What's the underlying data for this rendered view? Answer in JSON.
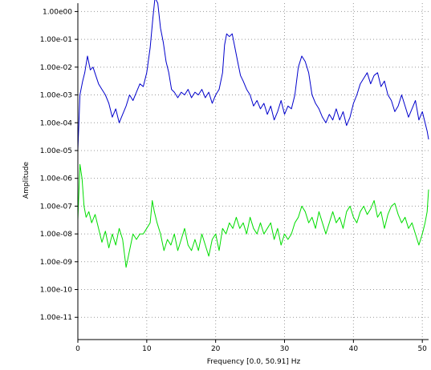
{
  "chart_data": {
    "type": "line",
    "title": "",
    "xlabel": "Frequency [0.0, 50.91] Hz",
    "ylabel": "Amplitude",
    "x_scale": "linear",
    "y_scale": "log",
    "xlim": [
      0,
      50.91
    ],
    "ylim_log10": [
      -11.8,
      0.3
    ],
    "grid": true,
    "legend": "none",
    "x_ticks": [
      0,
      10,
      20,
      30,
      40,
      50
    ],
    "x_tick_labels": [
      "0",
      "10",
      "20",
      "30",
      "40",
      "50"
    ],
    "y_ticks_log10": [
      0,
      -1,
      -2,
      -3,
      -4,
      -5,
      -6,
      -7,
      -8,
      -9,
      -10,
      -11
    ],
    "y_tick_labels": [
      "1.00e00",
      "1.00e-01",
      "1.00e-02",
      "1.00e-03",
      "1.00e-04",
      "1.00e-05",
      "1.00e-06",
      "1.00e-07",
      "1.00e-08",
      "1.00e-09",
      "1.00e-10",
      "1.00e-11"
    ],
    "series": [
      {
        "color": "#0000cc",
        "x": [
          0,
          0.3,
          0.7,
          1.0,
          1.4,
          1.8,
          2.2,
          2.6,
          3.0,
          3.5,
          4.0,
          4.5,
          5.0,
          5.5,
          6.0,
          6.5,
          7.0,
          7.5,
          8.0,
          8.5,
          9.0,
          9.5,
          10.0,
          10.5,
          10.9,
          11.2,
          11.6,
          12.0,
          12.4,
          12.8,
          13.2,
          13.6,
          14.0,
          14.5,
          15.0,
          15.5,
          16.0,
          16.5,
          17.0,
          17.5,
          18.0,
          18.5,
          19.0,
          19.5,
          20.0,
          20.5,
          21.0,
          21.3,
          21.6,
          22.0,
          22.4,
          22.8,
          23.2,
          23.6,
          24.0,
          24.5,
          25.0,
          25.5,
          26.0,
          26.5,
          27.0,
          27.5,
          28.0,
          28.5,
          29.0,
          29.5,
          30.0,
          30.5,
          31.0,
          31.5,
          32.0,
          32.5,
          33.0,
          33.5,
          34.0,
          34.5,
          35.0,
          35.5,
          36.0,
          36.5,
          37.0,
          37.5,
          38.0,
          38.5,
          39.0,
          39.5,
          40.0,
          40.5,
          41.0,
          41.5,
          42.0,
          42.5,
          43.0,
          43.5,
          44.0,
          44.5,
          45.0,
          45.5,
          46.0,
          46.5,
          47.0,
          47.5,
          48.0,
          48.5,
          49.0,
          49.5,
          50.0,
          50.4,
          50.7,
          50.91
        ],
        "log10_y": [
          -5.0,
          -3.0,
          -2.5,
          -2.2,
          -1.6,
          -2.1,
          -2.0,
          -2.3,
          -2.6,
          -2.8,
          -3.0,
          -3.3,
          -3.8,
          -3.5,
          -4.0,
          -3.7,
          -3.4,
          -3.0,
          -3.2,
          -2.9,
          -2.6,
          -2.7,
          -2.2,
          -1.3,
          -0.2,
          0.5,
          0.3,
          -0.6,
          -1.1,
          -1.8,
          -2.2,
          -2.8,
          -2.9,
          -3.1,
          -2.9,
          -3.0,
          -2.8,
          -3.1,
          -2.9,
          -3.0,
          -2.8,
          -3.1,
          -2.9,
          -3.3,
          -3.0,
          -2.8,
          -2.2,
          -1.2,
          -0.8,
          -0.9,
          -0.8,
          -1.3,
          -1.8,
          -2.3,
          -2.5,
          -2.8,
          -3.0,
          -3.4,
          -3.2,
          -3.5,
          -3.3,
          -3.7,
          -3.4,
          -3.9,
          -3.6,
          -3.2,
          -3.7,
          -3.4,
          -3.5,
          -3.0,
          -2.0,
          -1.6,
          -1.8,
          -2.2,
          -3.0,
          -3.3,
          -3.5,
          -3.8,
          -4.0,
          -3.7,
          -3.9,
          -3.5,
          -3.9,
          -3.6,
          -4.1,
          -3.8,
          -3.3,
          -3.0,
          -2.6,
          -2.4,
          -2.2,
          -2.6,
          -2.3,
          -2.2,
          -2.7,
          -2.5,
          -3.0,
          -3.2,
          -3.6,
          -3.4,
          -3.0,
          -3.4,
          -3.8,
          -3.5,
          -3.2,
          -3.9,
          -3.6,
          -4.0,
          -4.3,
          -4.6
        ]
      },
      {
        "color": "#00dd00",
        "x": [
          0,
          0.3,
          0.6,
          0.9,
          1.2,
          1.6,
          2.0,
          2.5,
          3.0,
          3.5,
          4.0,
          4.5,
          5.0,
          5.5,
          6.0,
          6.5,
          7.0,
          7.5,
          8.0,
          8.5,
          9.0,
          9.5,
          10.0,
          10.5,
          10.8,
          11.1,
          11.5,
          12.0,
          12.5,
          13.0,
          13.5,
          14.0,
          14.5,
          15.0,
          15.5,
          16.0,
          16.5,
          17.0,
          17.5,
          18.0,
          18.5,
          19.0,
          19.5,
          20.0,
          20.5,
          21.0,
          21.5,
          22.0,
          22.5,
          23.0,
          23.5,
          24.0,
          24.5,
          25.0,
          25.5,
          26.0,
          26.5,
          27.0,
          27.5,
          28.0,
          28.5,
          29.0,
          29.5,
          30.0,
          30.5,
          31.0,
          31.5,
          32.0,
          32.5,
          33.0,
          33.5,
          34.0,
          34.5,
          35.0,
          35.5,
          36.0,
          36.5,
          37.0,
          37.5,
          38.0,
          38.5,
          39.0,
          39.5,
          40.0,
          40.5,
          41.0,
          41.5,
          42.0,
          42.5,
          43.0,
          43.5,
          44.0,
          44.5,
          45.0,
          45.5,
          46.0,
          46.5,
          47.0,
          47.5,
          48.0,
          48.5,
          49.0,
          49.5,
          50.0,
          50.4,
          50.7,
          50.91
        ],
        "log10_y": [
          -7.5,
          -5.5,
          -6.0,
          -7.0,
          -7.4,
          -7.2,
          -7.6,
          -7.3,
          -7.8,
          -8.3,
          -7.9,
          -8.5,
          -8.0,
          -8.4,
          -7.8,
          -8.2,
          -9.2,
          -8.6,
          -8.0,
          -8.2,
          -8.0,
          -8.0,
          -7.8,
          -7.6,
          -6.8,
          -7.2,
          -7.6,
          -8.0,
          -8.6,
          -8.2,
          -8.4,
          -8.0,
          -8.6,
          -8.2,
          -7.8,
          -8.4,
          -8.6,
          -8.2,
          -8.6,
          -8.0,
          -8.4,
          -8.8,
          -8.2,
          -8.0,
          -8.6,
          -7.8,
          -8.0,
          -7.6,
          -7.8,
          -7.4,
          -7.8,
          -7.6,
          -8.0,
          -7.4,
          -7.8,
          -8.0,
          -7.6,
          -8.0,
          -7.8,
          -7.6,
          -8.2,
          -7.8,
          -8.4,
          -8.0,
          -8.2,
          -8.0,
          -7.6,
          -7.4,
          -7.0,
          -7.2,
          -7.6,
          -7.4,
          -7.8,
          -7.2,
          -7.6,
          -8.0,
          -7.6,
          -7.2,
          -7.6,
          -7.4,
          -7.8,
          -7.2,
          -7.0,
          -7.4,
          -7.6,
          -7.2,
          -7.0,
          -7.3,
          -7.1,
          -6.8,
          -7.4,
          -7.2,
          -7.8,
          -7.3,
          -7.0,
          -6.9,
          -7.3,
          -7.6,
          -7.4,
          -7.8,
          -7.6,
          -8.0,
          -8.4,
          -8.0,
          -7.6,
          -7.2,
          -6.4
        ]
      }
    ]
  }
}
